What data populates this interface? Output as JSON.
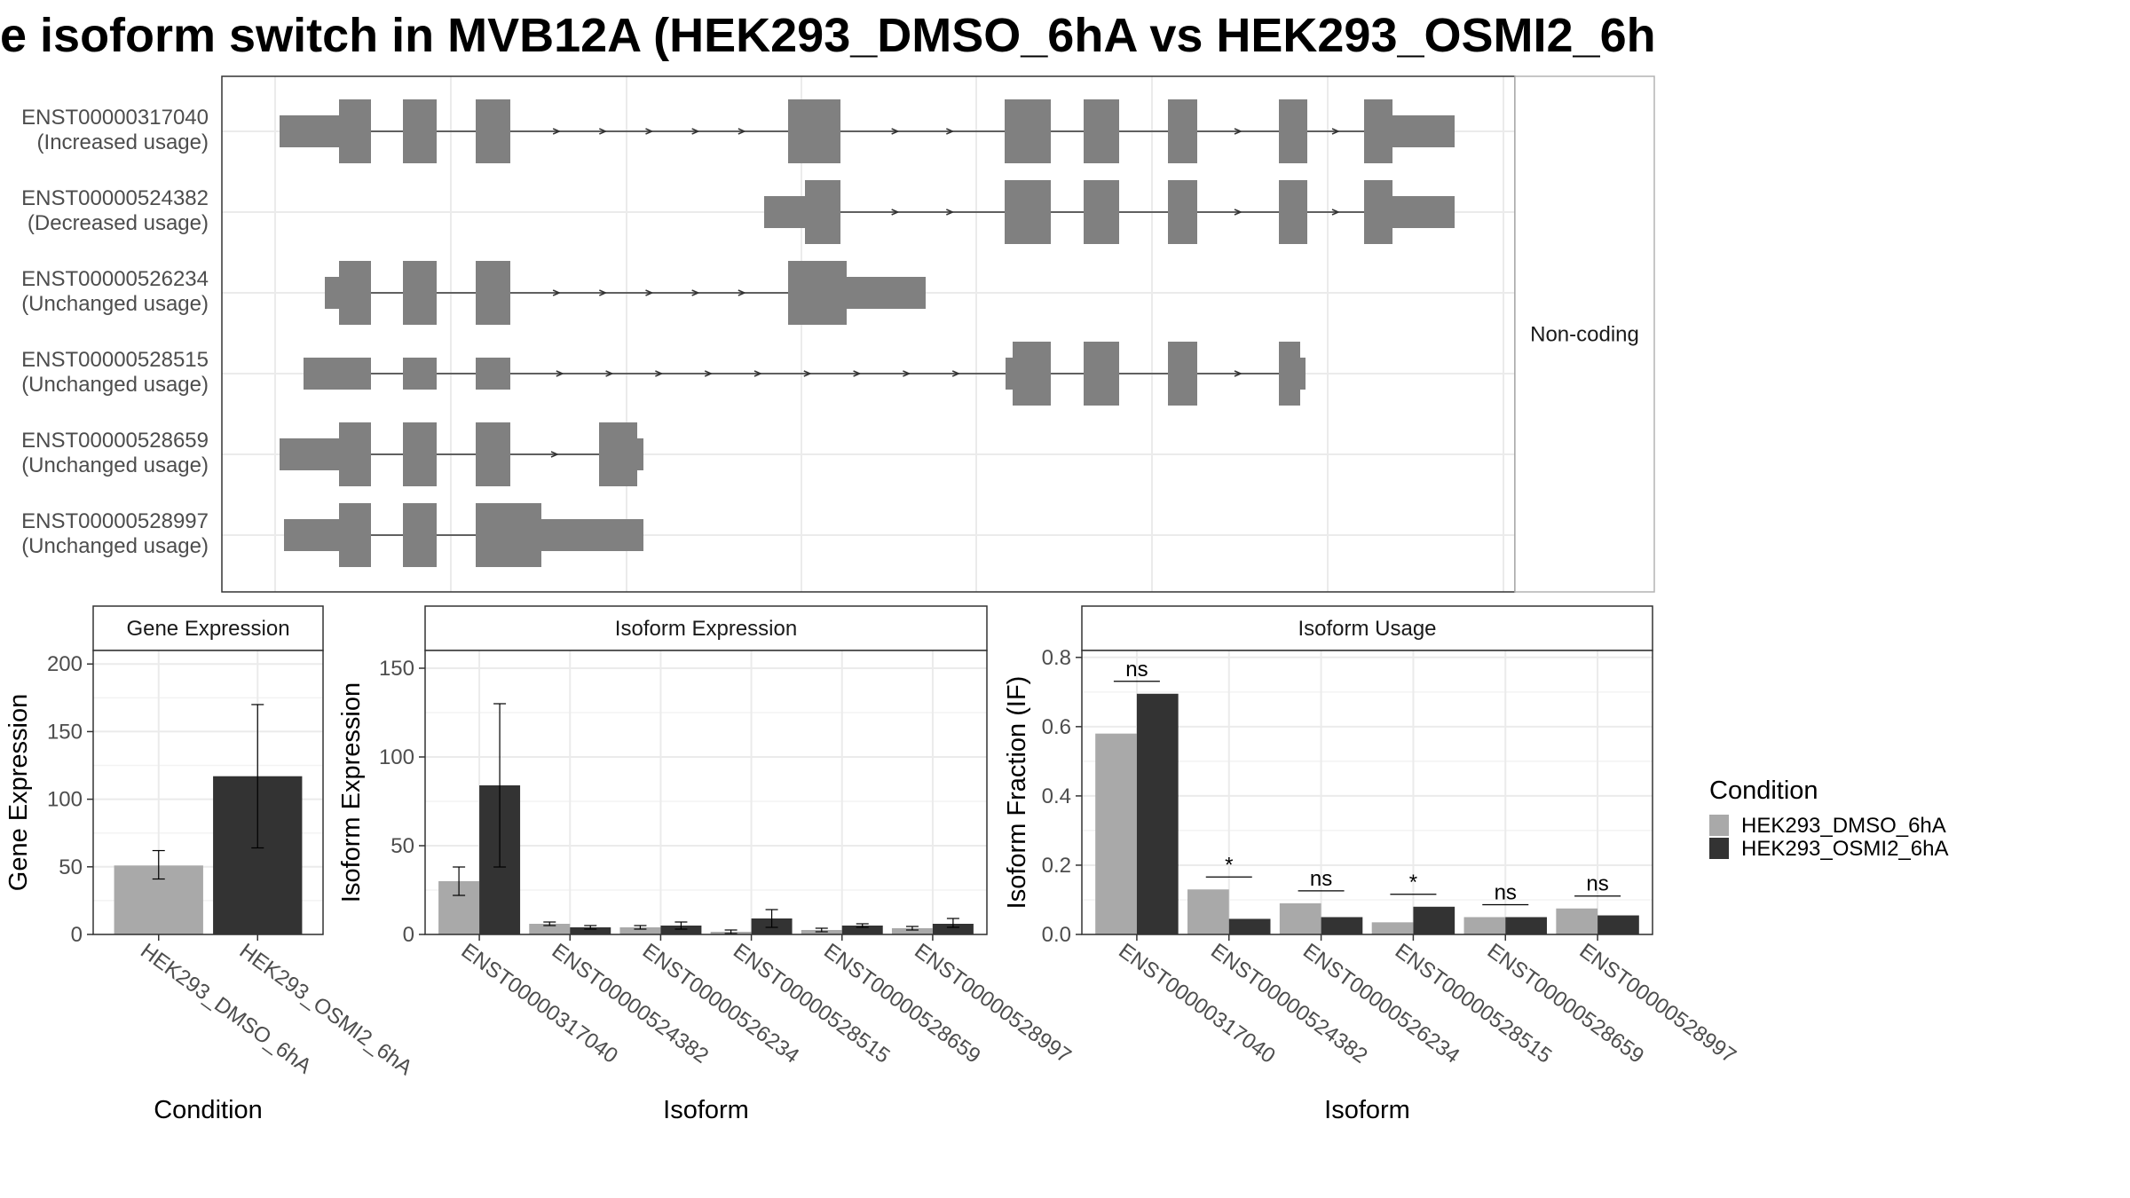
{
  "title": "e isoform switch in MVB12A (HEK293_DMSO_6hA vs HEK293_OSMI2_6h",
  "colors": {
    "dmso": "#a9a9a9",
    "osmi": "#333333",
    "exon": "#808080",
    "strip": "#ffffff",
    "grid": "#ebebeb",
    "panel_border": "#333333"
  },
  "structure": {
    "strip_label": "Non-coding",
    "transcripts": [
      {
        "id": "ENST00000317040",
        "usage": "(Increased usage)"
      },
      {
        "id": "ENST00000524382",
        "usage": "(Decreased usage)"
      },
      {
        "id": "ENST00000526234",
        "usage": "(Unchanged usage)"
      },
      {
        "id": "ENST00000528515",
        "usage": "(Unchanged usage)"
      },
      {
        "id": "ENST00000528659",
        "usage": "(Unchanged usage)"
      },
      {
        "id": "ENST00000528997",
        "usage": "(Unchanged usage)"
      }
    ]
  },
  "legend": {
    "title": "Condition",
    "items": [
      "HEK293_DMSO_6hA",
      "HEK293_OSMI2_6hA"
    ]
  },
  "chart_data": [
    {
      "type": "bar",
      "title": "Gene Expression",
      "xlabel": "Condition",
      "ylabel": "Gene Expression",
      "ylim": [
        0,
        210
      ],
      "yticks": [
        0,
        50,
        100,
        150,
        200
      ],
      "categories": [
        "HEK293_DMSO_6hA",
        "HEK293_OSMI2_6hA"
      ],
      "values": [
        51,
        117
      ],
      "err_low": [
        41,
        64
      ],
      "err_high": [
        62,
        170
      ]
    },
    {
      "type": "bar",
      "title": "Isoform Expression",
      "xlabel": "Isoform",
      "ylabel": "Isoform Expression",
      "ylim": [
        0,
        160
      ],
      "yticks": [
        0,
        50,
        100,
        150
      ],
      "categories": [
        "ENST00000317040",
        "ENST00000524382",
        "ENST00000526234",
        "ENST00000528515",
        "ENST00000528659",
        "ENST00000528997"
      ],
      "series": [
        {
          "name": "HEK293_DMSO_6hA",
          "values": [
            30,
            6,
            4,
            1.5,
            2.5,
            3.5
          ],
          "err_low": [
            22,
            5,
            3,
            0.5,
            1.5,
            2.5
          ],
          "err_high": [
            38,
            7,
            5,
            2.5,
            3.5,
            4.5
          ]
        },
        {
          "name": "HEK293_OSMI2_6hA",
          "values": [
            84,
            4,
            5,
            9,
            5,
            6
          ],
          "err_low": [
            38,
            3,
            3,
            4,
            4,
            4
          ],
          "err_high": [
            130,
            5,
            7,
            14,
            6,
            9
          ]
        }
      ]
    },
    {
      "type": "bar",
      "title": "Isoform Usage",
      "xlabel": "Isoform",
      "ylabel": "Isoform Fraction (IF)",
      "ylim": [
        0,
        0.82
      ],
      "yticks": [
        0.0,
        0.2,
        0.4,
        0.6,
        0.8
      ],
      "categories": [
        "ENST00000317040",
        "ENST00000524382",
        "ENST00000526234",
        "ENST00000528515",
        "ENST00000528659",
        "ENST00000528997"
      ],
      "series": [
        {
          "name": "HEK293_DMSO_6hA",
          "values": [
            0.58,
            0.13,
            0.09,
            0.035,
            0.05,
            0.075
          ]
        },
        {
          "name": "HEK293_OSMI2_6hA",
          "values": [
            0.695,
            0.045,
            0.05,
            0.08,
            0.05,
            0.055
          ]
        }
      ],
      "significance": [
        "ns",
        "*",
        "ns",
        "*",
        "ns",
        "ns"
      ]
    }
  ]
}
